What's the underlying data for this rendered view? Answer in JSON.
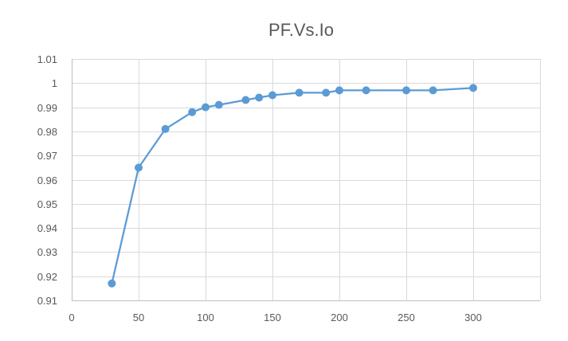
{
  "chart_data": {
    "type": "scatter",
    "title": "PF.Vs.Io",
    "xlabel": "",
    "ylabel": "",
    "xlim": [
      0,
      350
    ],
    "ylim": [
      0.91,
      1.01
    ],
    "x_ticks": [
      0,
      50,
      100,
      150,
      200,
      250,
      300
    ],
    "x_tick_labels": [
      "0",
      "50",
      "100",
      "150",
      "200",
      "250",
      "300"
    ],
    "y_ticks": [
      0.91,
      0.92,
      0.93,
      0.94,
      0.95,
      0.96,
      0.97,
      0.98,
      0.99,
      1.0,
      1.01
    ],
    "y_tick_labels": [
      "0.91",
      "0.92",
      "0.93",
      "0.94",
      "0.95",
      "0.96",
      "0.97",
      "0.98",
      "0.99",
      "1",
      "1.01"
    ],
    "grid": true,
    "legend": "none",
    "series": [
      {
        "color": "#5b9bd5",
        "style": "line-with-markers",
        "x": [
          30,
          50,
          70,
          90,
          100,
          110,
          130,
          140,
          150,
          170,
          190,
          200,
          220,
          250,
          270,
          300
        ],
        "y": [
          0.917,
          0.965,
          0.981,
          0.988,
          0.99,
          0.991,
          0.993,
          0.994,
          0.995,
          0.996,
          0.996,
          0.997,
          0.997,
          0.997,
          0.997,
          0.998
        ]
      }
    ]
  }
}
